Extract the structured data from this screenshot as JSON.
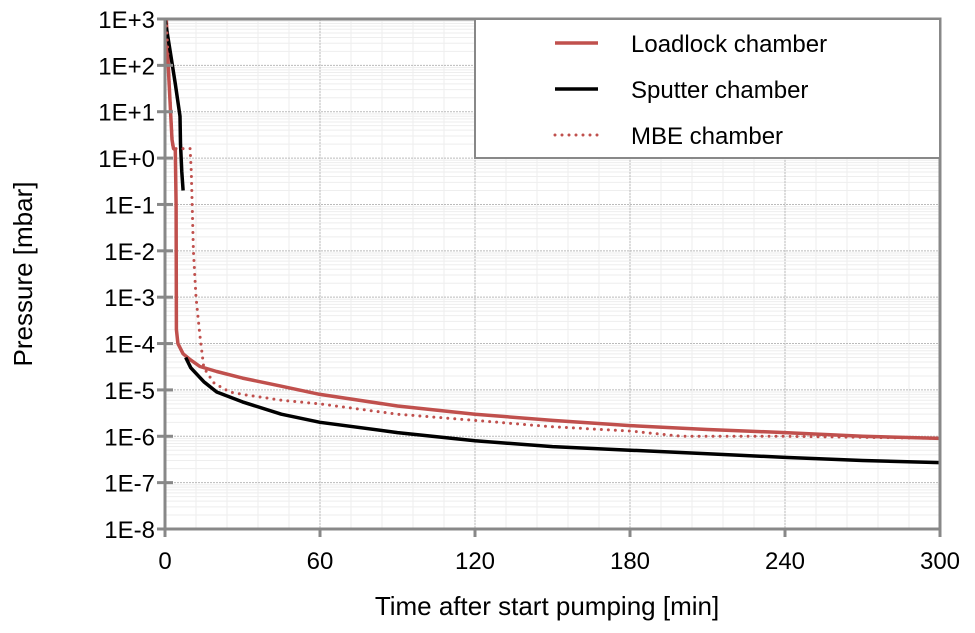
{
  "chart_data": {
    "type": "line",
    "title": "",
    "xlabel": "Time after start pumping [min]",
    "ylabel": "Pressure [mbar]",
    "xlim": [
      0,
      300
    ],
    "ylim": [
      1e-08,
      1000
    ],
    "yscale": "log",
    "grid": true,
    "legend_position": "top-right",
    "x_ticks": [
      "0",
      "60",
      "120",
      "180",
      "240",
      "300"
    ],
    "x_tick_values": [
      0,
      60,
      120,
      180,
      240,
      300
    ],
    "y_ticks": [
      "1E+3",
      "1E+2",
      "1E+1",
      "1E+0",
      "1E-1",
      "1E-2",
      "1E-3",
      "1E-4",
      "1E-5",
      "1E-6",
      "1E-7",
      "1E-8"
    ],
    "y_tick_values": [
      1000,
      100,
      10,
      1,
      0.1,
      0.01,
      0.001,
      0.0001,
      1e-05,
      1e-06,
      1e-07,
      1e-08
    ],
    "series": [
      {
        "name": "Loadlock chamber",
        "color": "#c0504d",
        "style": "solid",
        "segments": [
          [
            [
              0.5,
              1000
            ],
            [
              1.5,
              50
            ],
            [
              2.7,
              2.5
            ],
            [
              3.3,
              1.6
            ],
            [
              4.0,
              1.5
            ],
            [
              4.3,
              0.1
            ],
            [
              4.4,
              0.0002
            ],
            [
              5,
              0.0001
            ],
            [
              7,
              6e-05
            ],
            [
              9.7,
              4.5e-05
            ],
            [
              13.5,
              3.2e-05
            ],
            [
              20,
              2.5e-05
            ],
            [
              30,
              1.8e-05
            ],
            [
              45,
              1.2e-05
            ],
            [
              60,
              8e-06
            ],
            [
              90,
              4.5e-06
            ],
            [
              120,
              3e-06
            ],
            [
              150,
              2.2e-06
            ],
            [
              180,
              1.7e-06
            ],
            [
              210,
              1.4e-06
            ],
            [
              240,
              1.2e-06
            ],
            [
              270,
              1e-06
            ],
            [
              300,
              9e-07
            ]
          ]
        ]
      },
      {
        "name": "Sputter chamber",
        "color": "#000000",
        "style": "solid",
        "segments": [
          [
            [
              0,
              1000
            ],
            [
              2,
              200
            ],
            [
              4,
              40
            ],
            [
              5.8,
              8
            ],
            [
              6,
              2
            ],
            [
              6.5,
              0.5
            ],
            [
              7,
              0.2
            ]
          ],
          [
            [
              8,
              5e-05
            ],
            [
              10,
              3e-05
            ],
            [
              15,
              1.5e-05
            ],
            [
              20,
              9e-06
            ],
            [
              30,
              5.5e-06
            ],
            [
              45,
              3e-06
            ],
            [
              60,
              2e-06
            ],
            [
              90,
              1.2e-06
            ],
            [
              120,
              8e-07
            ],
            [
              150,
              6e-07
            ],
            [
              180,
              5e-07
            ],
            [
              210,
              4.2e-07
            ],
            [
              240,
              3.5e-07
            ],
            [
              270,
              3e-07
            ],
            [
              300,
              2.7e-07
            ]
          ]
        ]
      },
      {
        "name": "MBE chamber",
        "color": "#c0504d",
        "style": "dotted",
        "segments": [
          [
            [
              0.5,
              1000
            ],
            [
              1.5,
              60
            ],
            [
              2.5,
              5
            ],
            [
              3,
              1.6
            ],
            [
              9.7,
              1.6
            ],
            [
              10.2,
              0.5
            ],
            [
              11,
              0.01
            ],
            [
              12,
              0.001
            ],
            [
              13.5,
              0.00015
            ],
            [
              15,
              3e-05
            ],
            [
              19,
              1.4e-05
            ],
            [
              25,
              9e-06
            ],
            [
              30,
              8e-06
            ],
            [
              45,
              6e-06
            ],
            [
              60,
              5e-06
            ],
            [
              90,
              3e-06
            ],
            [
              120,
              2.2e-06
            ],
            [
              150,
              1.6e-06
            ],
            [
              180,
              1.3e-06
            ],
            [
              200,
              1e-06
            ],
            [
              240,
              1e-06
            ],
            [
              270,
              9.5e-07
            ],
            [
              300,
              9e-07
            ]
          ]
        ]
      }
    ]
  }
}
